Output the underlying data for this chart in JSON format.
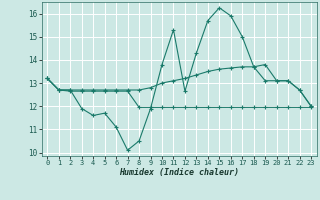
{
  "xlabel": "Humidex (Indice chaleur)",
  "x": [
    0,
    1,
    2,
    3,
    4,
    5,
    6,
    7,
    8,
    9,
    10,
    11,
    12,
    13,
    14,
    15,
    16,
    17,
    18,
    19,
    20,
    21,
    22,
    23
  ],
  "line_main": [
    13.2,
    12.7,
    12.7,
    11.9,
    11.6,
    11.7,
    11.1,
    10.1,
    10.5,
    11.9,
    13.8,
    15.3,
    12.65,
    14.3,
    15.7,
    16.25,
    15.9,
    15.0,
    13.7,
    13.8,
    13.1,
    13.1,
    12.7,
    12.0
  ],
  "line_upper": [
    13.2,
    12.7,
    12.7,
    12.7,
    12.7,
    12.7,
    12.7,
    12.7,
    12.7,
    12.8,
    13.0,
    13.1,
    13.2,
    13.35,
    13.5,
    13.6,
    13.65,
    13.7,
    13.7,
    13.1,
    13.1,
    13.1,
    12.7,
    12.0
  ],
  "line_lower": [
    13.2,
    12.7,
    12.65,
    12.65,
    12.65,
    12.65,
    12.65,
    12.65,
    11.95,
    11.95,
    11.95,
    11.95,
    11.95,
    11.95,
    11.95,
    11.95,
    11.95,
    11.95,
    11.95,
    11.95,
    11.95,
    11.95,
    11.95,
    11.95
  ],
  "color": "#1a7a6a",
  "bg_color": "#cce8e4",
  "grid_color": "#ffffff",
  "ylim": [
    9.85,
    16.5
  ],
  "yticks": [
    10,
    11,
    12,
    13,
    14,
    15,
    16
  ],
  "xlim": [
    -0.5,
    23.5
  ],
  "xticks": [
    0,
    1,
    2,
    3,
    4,
    5,
    6,
    7,
    8,
    9,
    10,
    11,
    12,
    13,
    14,
    15,
    16,
    17,
    18,
    19,
    20,
    21,
    22,
    23
  ]
}
